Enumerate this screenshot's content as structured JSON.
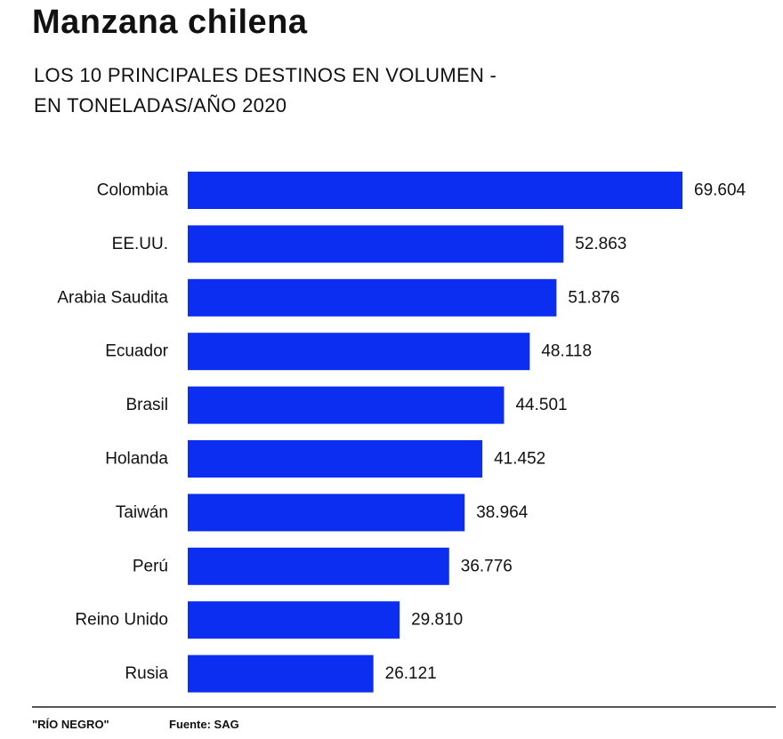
{
  "header": {
    "title": "Manzana chilena",
    "subtitle_line1": "LOS 10 PRINCIPALES DESTINOS EN VOLUMEN -",
    "subtitle_line2": "EN TONELADAS/AÑO 2020"
  },
  "footer": {
    "credit": "\"RÍO NEGRO\"",
    "source": "Fuente: SAG"
  },
  "colors": {
    "bar": "#0b2ef0",
    "text": "#111111",
    "rule": "#555555"
  },
  "chart_data": {
    "type": "bar",
    "orientation": "horizontal",
    "title": "Manzana chilena",
    "subtitle": "LOS 10 PRINCIPALES DESTINOS EN VOLUMEN - EN TONELADAS/AÑO 2020",
    "categories": [
      "Colombia",
      "EE.UU.",
      "Arabia Saudita",
      "Ecuador",
      "Brasil",
      "Holanda",
      "Taiwán",
      "Perú",
      "Reino Unido",
      "Rusia"
    ],
    "values": [
      69604,
      52863,
      51876,
      48118,
      44501,
      41452,
      38964,
      36776,
      29810,
      26121
    ],
    "value_labels": [
      "69.604",
      "52.863",
      "51.876",
      "48.118",
      "44.501",
      "41.452",
      "38.964",
      "36.776",
      "29.810",
      "26.121"
    ],
    "xlim": [
      0,
      69604
    ],
    "grid": false,
    "legend": "none"
  }
}
